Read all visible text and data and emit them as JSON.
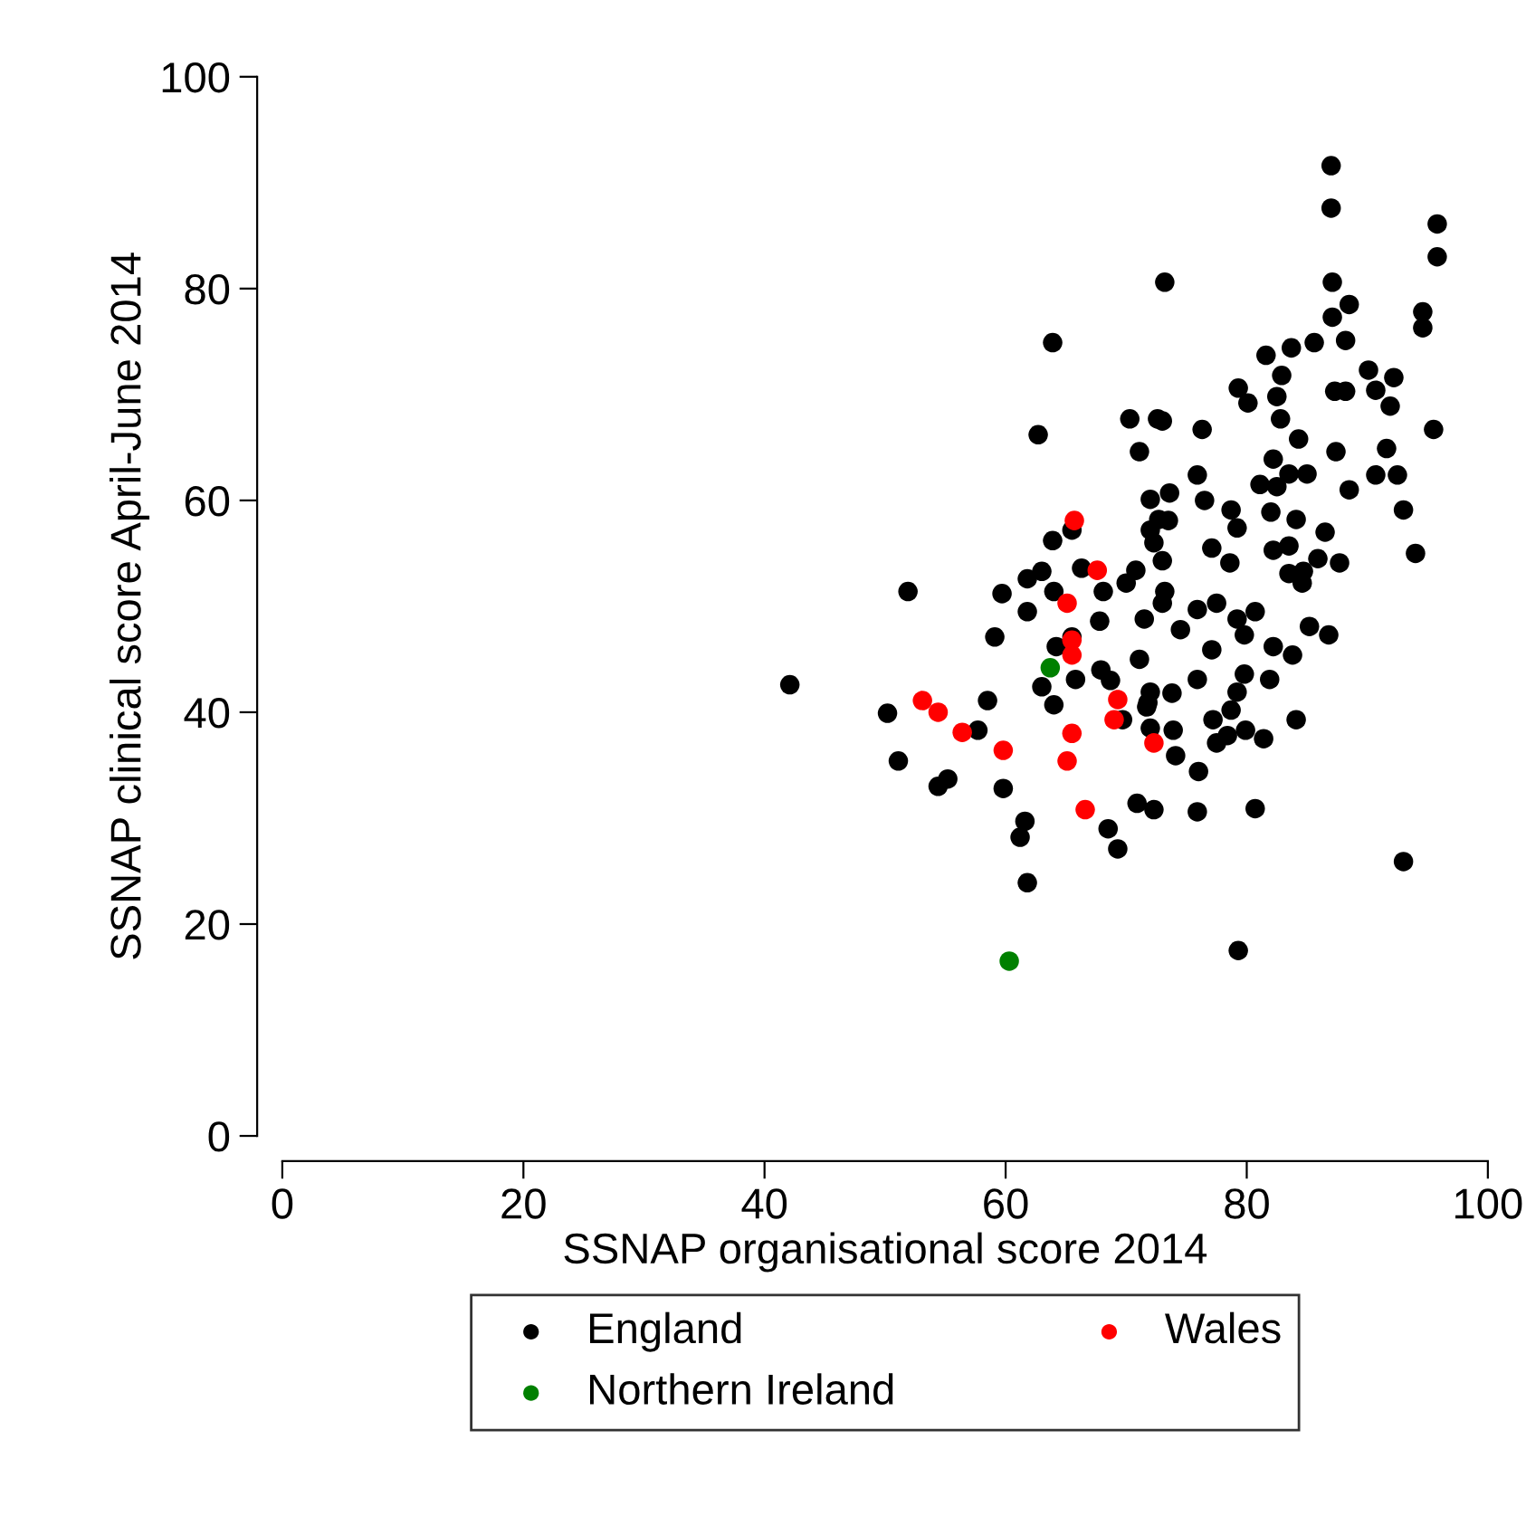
{
  "chart_data": {
    "type": "scatter",
    "xlabel": "SSNAP organisational score 2014",
    "ylabel": "SSNAP clinical score April-June 2014",
    "xlim": [
      0,
      100
    ],
    "ylim": [
      0,
      100
    ],
    "xticks": [
      0,
      20,
      40,
      60,
      80,
      100
    ],
    "yticks": [
      0,
      20,
      40,
      60,
      80,
      100
    ],
    "grid": false,
    "legend": "bottom",
    "marker": "circle",
    "series": [
      {
        "name": "England",
        "color": "#000000",
        "x": [
          42.1,
          50.2,
          51.1,
          51.9,
          54.4,
          55.2,
          58.5,
          57.7,
          59.8,
          59.1,
          59.7,
          61.8,
          63.0,
          61.8,
          64.0,
          65.5,
          64.2,
          63.0,
          64.0,
          65.8,
          66.3,
          67.8,
          68.1,
          67.9,
          68.7,
          69.7,
          71.1,
          71.8,
          71.5,
          70.0,
          70.8,
          70.9,
          72.3,
          68.5,
          69.3,
          61.6,
          61.2,
          61.8,
          72.0,
          71.7,
          72.0,
          77.1,
          78.6,
          82.2,
          83.5,
          85.9,
          87.7,
          83.5,
          84.7,
          84.6,
          94.0,
          73.0,
          73.2,
          73.0,
          75.9,
          77.5,
          79.2,
          80.7,
          79.8,
          74.5,
          77.1,
          82.2,
          83.8,
          85.2,
          86.8,
          75.9,
          79.8,
          81.9,
          79.2,
          78.7,
          77.2,
          79.9,
          78.4,
          77.5,
          81.4,
          84.1,
          73.8,
          73.9,
          74.1,
          76.0,
          75.9,
          80.7,
          93.0,
          79.3,
          87.0,
          87.0,
          95.8,
          95.8,
          73.2,
          87.1,
          88.5,
          87.1,
          94.6,
          94.6,
          85.6,
          88.2,
          83.7,
          81.6,
          82.9,
          79.3,
          80.1,
          82.5,
          87.3,
          88.2,
          90.1,
          92.2,
          90.7,
          91.9,
          82.8,
          73.0,
          76.3,
          95.5,
          84.3,
          87.4,
          91.6,
          82.2,
          83.5,
          85.0,
          81.1,
          82.5,
          75.9,
          76.5,
          73.6,
          73.5,
          90.7,
          92.5,
          88.5,
          93.0,
          78.7,
          79.2,
          82.0,
          84.1,
          86.5,
          63.9,
          62.7,
          70.3,
          72.6,
          71.1,
          72.0,
          72.7,
          72.0,
          72.3,
          63.9,
          65.5
        ],
        "values": [
          42.6,
          39.9,
          35.4,
          51.4,
          33.0,
          33.7,
          41.1,
          38.3,
          32.8,
          47.1,
          51.2,
          52.6,
          53.3,
          49.5,
          51.4,
          47.1,
          46.2,
          42.4,
          40.7,
          43.1,
          53.6,
          48.6,
          51.4,
          44.0,
          43.0,
          39.3,
          45.0,
          40.9,
          48.8,
          52.2,
          53.4,
          31.4,
          30.8,
          29.0,
          27.1,
          29.7,
          28.2,
          23.9,
          41.9,
          40.5,
          38.5,
          55.5,
          54.1,
          55.3,
          55.7,
          54.5,
          54.1,
          53.1,
          53.3,
          52.2,
          55.0,
          54.3,
          51.4,
          50.3,
          49.7,
          50.3,
          48.8,
          49.5,
          47.3,
          47.8,
          45.9,
          46.2,
          45.4,
          48.1,
          47.3,
          43.1,
          43.6,
          43.1,
          41.9,
          40.2,
          39.3,
          38.3,
          37.8,
          37.1,
          37.5,
          39.3,
          41.8,
          38.3,
          35.9,
          34.4,
          30.6,
          30.9,
          25.9,
          17.5,
          91.6,
          87.6,
          86.1,
          83.0,
          80.6,
          80.6,
          78.5,
          77.3,
          77.8,
          76.3,
          74.9,
          75.1,
          74.4,
          73.7,
          71.8,
          70.6,
          69.2,
          69.8,
          70.3,
          70.3,
          72.3,
          71.6,
          70.4,
          68.9,
          67.7,
          67.5,
          66.7,
          66.7,
          65.8,
          64.6,
          64.9,
          63.9,
          62.5,
          62.5,
          61.5,
          61.3,
          62.4,
          60.0,
          60.7,
          58.1,
          62.4,
          62.4,
          61.0,
          59.1,
          59.1,
          57.4,
          58.9,
          58.2,
          57.0,
          74.9,
          66.2,
          67.7,
          67.7,
          64.6,
          60.1,
          58.2,
          57.2,
          56.0,
          56.2,
          57.2
        ]
      },
      {
        "name": "Northern Ireland",
        "color": "#008000",
        "x": [
          63.7,
          60.3
        ],
        "values": [
          44.2,
          16.5
        ]
      },
      {
        "name": "Wales",
        "color": "#ff0000",
        "x": [
          53.1,
          54.4,
          56.4,
          59.8,
          65.1,
          65.5,
          67.6,
          65.5,
          69.3,
          69.0,
          65.5,
          65.1,
          66.6,
          72.3,
          65.7
        ],
        "values": [
          41.1,
          40.0,
          38.1,
          36.4,
          50.3,
          46.8,
          53.4,
          45.4,
          41.2,
          39.3,
          38.0,
          35.4,
          30.8,
          37.1,
          58.1
        ]
      }
    ]
  }
}
